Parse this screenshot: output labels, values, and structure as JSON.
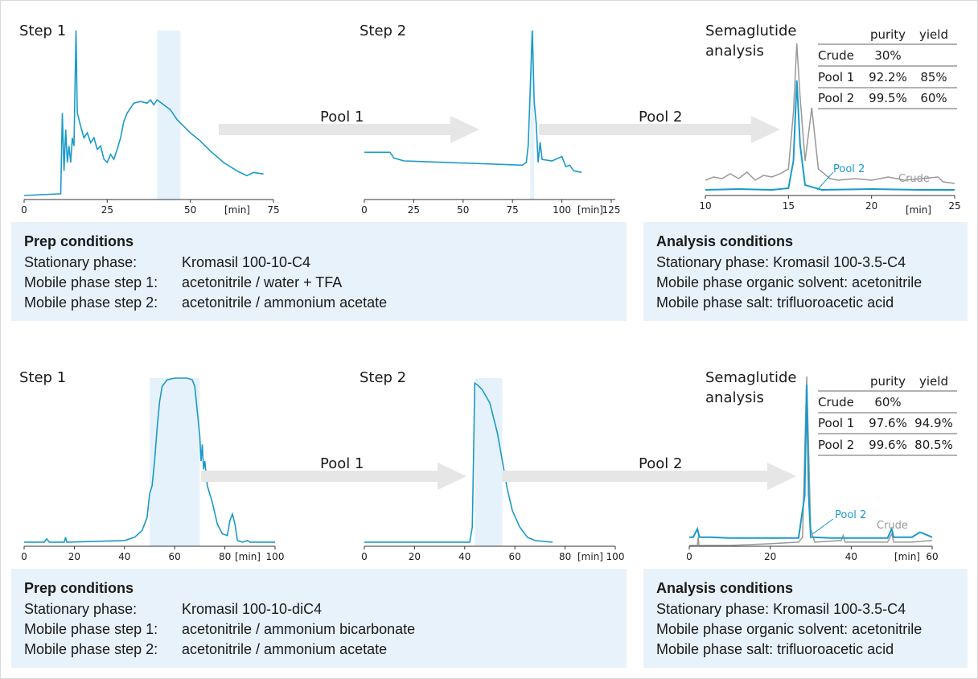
{
  "colors": {
    "trace": "#1a9ac9",
    "crude": "#999999",
    "highlight": "#e6f2fb",
    "arrow": "#e6e6e6",
    "panel": "#e8f2fa",
    "axis": "#333333"
  },
  "sections": [
    {
      "step1": {
        "label": "Step 1",
        "ticks": [
          "0",
          "25",
          "50",
          "75"
        ],
        "unit": "[min]"
      },
      "pool1": "Pool 1",
      "step2": {
        "label": "Step 2",
        "ticks": [
          "0",
          "25",
          "50",
          "75",
          "100",
          "125"
        ],
        "unit": "[min]"
      },
      "pool2": "Pool 2",
      "analysis": {
        "title_line1": "Semaglutide",
        "title_line2": "analysis",
        "ticks": [
          "10",
          "15",
          "20",
          "25"
        ],
        "unit": "[min]",
        "label_pool": "Pool 2",
        "label_crude": "Crude"
      },
      "table": {
        "headers": [
          "",
          "purity",
          "yield"
        ],
        "rows": [
          [
            "Crude",
            "30%",
            ""
          ],
          [
            "Pool 1",
            "92.2%",
            "85%"
          ],
          [
            "Pool 2",
            "99.5%",
            "60%"
          ]
        ]
      },
      "prep": {
        "title": "Prep conditions",
        "rows": [
          {
            "k": "Stationary phase:",
            "v": "Kromasil 100-10-C4"
          },
          {
            "k": "Mobile phase step 1:",
            "v": "acetonitrile / water + TFA"
          },
          {
            "k": "Mobile phase step 2:",
            "v": "acetonitrile / ammonium acetate"
          }
        ]
      },
      "cond": {
        "title": "Analysis conditions",
        "rows": [
          {
            "k": "Stationary phase:",
            "v": "Kromasil 100-3.5-C4"
          },
          {
            "k": "Mobile phase organic solvent:",
            "v": "acetonitrile"
          },
          {
            "k": "Mobile phase salt:",
            "v": "trifluoroacetic acid"
          }
        ]
      }
    },
    {
      "step1": {
        "label": "Step 1",
        "ticks": [
          "0",
          "20",
          "40",
          "60",
          "80",
          "100"
        ],
        "unit": "[min]"
      },
      "pool1": "Pool 1",
      "step2": {
        "label": "Step 2",
        "ticks": [
          "0",
          "20",
          "40",
          "60",
          "80",
          "100"
        ],
        "unit": "[min]"
      },
      "pool2": "Pool 2",
      "analysis": {
        "title_line1": "Semaglutide",
        "title_line2": "analysis",
        "ticks": [
          "0",
          "20",
          "40",
          "60"
        ],
        "unit": "[min]",
        "label_pool": "Pool 2",
        "label_crude": "Crude"
      },
      "table": {
        "headers": [
          "",
          "purity",
          "yield"
        ],
        "rows": [
          [
            "Crude",
            "60%",
            ""
          ],
          [
            "Pool 1",
            "97.6%",
            "94.9%"
          ],
          [
            "Pool 2",
            "99.6%",
            "80.5%"
          ]
        ]
      },
      "prep": {
        "title": "Prep conditions",
        "rows": [
          {
            "k": "Stationary phase:",
            "v": "Kromasil 100-10-diC4"
          },
          {
            "k": "Mobile phase step 1:",
            "v": "acetonitrile / ammonium bicarbonate"
          },
          {
            "k": "Mobile phase step 2:",
            "v": "acetonitrile / ammonium acetate"
          }
        ]
      },
      "cond": {
        "title": "Analysis conditions",
        "rows": [
          {
            "k": "Stationary phase:",
            "v": "Kromasil 100-3.5-C4"
          },
          {
            "k": "Mobile phase organic solvent:",
            "v": "acetonitrile"
          },
          {
            "k": "Mobile phase salt:",
            "v": "trifluoroacetic acid"
          }
        ]
      }
    }
  ],
  "chart_data": [
    {
      "type": "line",
      "title": "Step 1",
      "xlabel": "[min]",
      "xlim": [
        0,
        75
      ],
      "pool_window": [
        40,
        47
      ],
      "series": [
        {
          "values": [
            [
              0,
              0
            ],
            [
              11,
              0.01
            ],
            [
              11.5,
              0.5
            ],
            [
              12,
              0.15
            ],
            [
              12.5,
              0.4
            ],
            [
              13,
              0.2
            ],
            [
              13.5,
              0.3
            ],
            [
              14,
              0.2
            ],
            [
              14.5,
              0.35
            ],
            [
              15,
              0.3
            ],
            [
              15.6,
              1.0
            ],
            [
              16,
              0.5
            ],
            [
              17,
              0.42
            ],
            [
              18,
              0.35
            ],
            [
              19,
              0.38
            ],
            [
              20,
              0.32
            ],
            [
              21,
              0.35
            ],
            [
              22,
              0.28
            ],
            [
              23,
              0.3
            ],
            [
              24,
              0.22
            ],
            [
              25,
              0.2
            ],
            [
              26,
              0.25
            ],
            [
              27,
              0.22
            ],
            [
              28,
              0.28
            ],
            [
              29,
              0.35
            ],
            [
              30,
              0.45
            ],
            [
              31,
              0.5
            ],
            [
              33,
              0.56
            ],
            [
              35,
              0.57
            ],
            [
              37,
              0.56
            ],
            [
              38,
              0.58
            ],
            [
              39,
              0.55
            ],
            [
              40,
              0.58
            ],
            [
              42,
              0.55
            ],
            [
              44,
              0.52
            ],
            [
              46,
              0.46
            ],
            [
              48,
              0.42
            ],
            [
              50,
              0.38
            ],
            [
              53,
              0.33
            ],
            [
              56,
              0.27
            ],
            [
              60,
              0.2
            ],
            [
              64,
              0.15
            ],
            [
              67,
              0.12
            ],
            [
              69,
              0.14
            ],
            [
              72,
              0.13
            ]
          ]
        }
      ]
    },
    {
      "type": "line",
      "title": "Step 2",
      "xlabel": "[min]",
      "xlim": [
        0,
        125
      ],
      "pool_window": [
        84,
        86
      ],
      "series": [
        {
          "values": [
            [
              0,
              0.15
            ],
            [
              13,
              0.15
            ],
            [
              15,
              0.11
            ],
            [
              20,
              0.09
            ],
            [
              40,
              0.08
            ],
            [
              60,
              0.07
            ],
            [
              80,
              0.06
            ],
            [
              82,
              0.08
            ],
            [
              83,
              0.2
            ],
            [
              84,
              0.6
            ],
            [
              85,
              1.0
            ],
            [
              86,
              0.5
            ],
            [
              87,
              0.35
            ],
            [
              88,
              0.08
            ],
            [
              89,
              0.22
            ],
            [
              90,
              0.1
            ],
            [
              95,
              0.09
            ],
            [
              100,
              0.12
            ],
            [
              102,
              0.05
            ],
            [
              104,
              0.06
            ],
            [
              106,
              0.02
            ],
            [
              110,
              0.01
            ]
          ]
        }
      ]
    },
    {
      "type": "line",
      "title": "Semaglutide analysis",
      "xlabel": "[min]",
      "xlim": [
        10,
        25
      ],
      "series": [
        {
          "name": "Crude",
          "values": [
            [
              10,
              0.08
            ],
            [
              10.5,
              0.1
            ],
            [
              11,
              0.09
            ],
            [
              11.5,
              0.12
            ],
            [
              12,
              0.09
            ],
            [
              12.5,
              0.13
            ],
            [
              13,
              0.08
            ],
            [
              13.5,
              0.11
            ],
            [
              14,
              0.1
            ],
            [
              14.5,
              0.12
            ],
            [
              15,
              0.15
            ],
            [
              15.3,
              0.5
            ],
            [
              15.5,
              0.93
            ],
            [
              15.7,
              0.6
            ],
            [
              16,
              0.2
            ],
            [
              16.4,
              0.53
            ],
            [
              16.8,
              0.15
            ],
            [
              17.5,
              0.09
            ],
            [
              18,
              0.08
            ],
            [
              19,
              0.09
            ],
            [
              20,
              0.08
            ],
            [
              21,
              0.1
            ],
            [
              22,
              0.08
            ],
            [
              23,
              0.09
            ],
            [
              24,
              0.1
            ],
            [
              24.3,
              0.07
            ],
            [
              25,
              0.06
            ]
          ]
        },
        {
          "name": "Pool 2",
          "values": [
            [
              10,
              0.02
            ],
            [
              12,
              0.025
            ],
            [
              14,
              0.02
            ],
            [
              15,
              0.03
            ],
            [
              15.3,
              0.2
            ],
            [
              15.5,
              0.7
            ],
            [
              15.7,
              0.3
            ],
            [
              16,
              0.05
            ],
            [
              17,
              0.02
            ],
            [
              20,
              0.025
            ],
            [
              23,
              0.02
            ],
            [
              25,
              0.02
            ]
          ]
        }
      ]
    },
    {
      "type": "line",
      "title": "Step 1",
      "xlabel": "[min]",
      "xlim": [
        0,
        100
      ],
      "pool_window": [
        50,
        70
      ],
      "series": [
        {
          "values": [
            [
              0,
              0.01
            ],
            [
              8,
              0.01
            ],
            [
              9,
              0.03
            ],
            [
              10,
              0.01
            ],
            [
              16,
              0.01
            ],
            [
              16.5,
              0.04
            ],
            [
              17,
              0.01
            ],
            [
              40,
              0.02
            ],
            [
              44,
              0.04
            ],
            [
              47,
              0.08
            ],
            [
              49,
              0.16
            ],
            [
              50,
              0.3
            ],
            [
              51,
              0.35
            ],
            [
              52,
              0.5
            ],
            [
              53,
              0.7
            ],
            [
              54,
              0.86
            ],
            [
              55,
              0.95
            ],
            [
              57,
              0.99
            ],
            [
              60,
              1.0
            ],
            [
              65,
              1.0
            ],
            [
              67,
              0.99
            ],
            [
              68,
              0.95
            ],
            [
              69,
              0.8
            ],
            [
              70,
              0.65
            ],
            [
              70.5,
              0.5
            ],
            [
              71,
              0.6
            ],
            [
              71.5,
              0.45
            ],
            [
              72,
              0.5
            ],
            [
              73,
              0.35
            ],
            [
              75,
              0.25
            ],
            [
              77,
              0.12
            ],
            [
              79,
              0.06
            ],
            [
              81,
              0.05
            ],
            [
              82,
              0.14
            ],
            [
              83,
              0.18
            ],
            [
              84,
              0.12
            ],
            [
              85,
              0.02
            ],
            [
              87,
              0.01
            ],
            [
              89,
              0.02
            ],
            [
              90,
              0.01
            ],
            [
              100,
              0.01
            ]
          ]
        }
      ]
    },
    {
      "type": "line",
      "title": "Step 2",
      "xlabel": "[min]",
      "xlim": [
        0,
        100
      ],
      "pool_window": [
        44,
        55
      ],
      "series": [
        {
          "values": [
            [
              0,
              0.01
            ],
            [
              42,
              0.01
            ],
            [
              43,
              0.1
            ],
            [
              43.5,
              0.5
            ],
            [
              44,
              0.97
            ],
            [
              45,
              0.96
            ],
            [
              47,
              0.93
            ],
            [
              50,
              0.85
            ],
            [
              53,
              0.67
            ],
            [
              55,
              0.5
            ],
            [
              57,
              0.33
            ],
            [
              59,
              0.2
            ],
            [
              62,
              0.1
            ],
            [
              65,
              0.04
            ],
            [
              68,
              0.02
            ],
            [
              75,
              0.01
            ]
          ]
        }
      ]
    },
    {
      "type": "line",
      "title": "Semaglutide analysis",
      "xlabel": "[min]",
      "xlim": [
        0,
        60
      ],
      "series": [
        {
          "name": "Crude",
          "values": [
            [
              0,
              0.0
            ],
            [
              2,
              0.0
            ],
            [
              2.2,
              0.05
            ],
            [
              2.4,
              0.0
            ],
            [
              5,
              0.0
            ],
            [
              10,
              0.0
            ],
            [
              20,
              0.01
            ],
            [
              27,
              0.02
            ],
            [
              28,
              0.05
            ],
            [
              29,
              1.02
            ],
            [
              30,
              0.1
            ],
            [
              31,
              0.02
            ],
            [
              37.5,
              0.03
            ],
            [
              38,
              0.06
            ],
            [
              38.5,
              0.02
            ],
            [
              49,
              0.02
            ],
            [
              50,
              0.07
            ],
            [
              50.5,
              0.02
            ],
            [
              55,
              0.02
            ],
            [
              60,
              0.03
            ]
          ]
        },
        {
          "name": "Pool 2",
          "values": [
            [
              0,
              0.05
            ],
            [
              1,
              0.05
            ],
            [
              2,
              0.1
            ],
            [
              2.5,
              0.05
            ],
            [
              5,
              0.05
            ],
            [
              10,
              0.045
            ],
            [
              20,
              0.045
            ],
            [
              27,
              0.045
            ],
            [
              28.5,
              0.3
            ],
            [
              29,
              0.97
            ],
            [
              29.5,
              0.3
            ],
            [
              30,
              0.05
            ],
            [
              35,
              0.045
            ],
            [
              40,
              0.045
            ],
            [
              49,
              0.045
            ],
            [
              50,
              0.1
            ],
            [
              50.5,
              0.05
            ],
            [
              55,
              0.05
            ],
            [
              57,
              0.08
            ],
            [
              60,
              0.05
            ]
          ]
        }
      ]
    }
  ]
}
